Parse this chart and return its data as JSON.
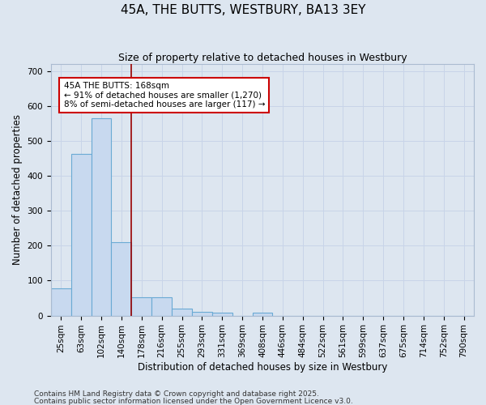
{
  "title": "45A, THE BUTTS, WESTBURY, BA13 3EY",
  "subtitle": "Size of property relative to detached houses in Westbury",
  "xlabel": "Distribution of detached houses by size in Westbury",
  "ylabel": "Number of detached properties",
  "categories": [
    "25sqm",
    "63sqm",
    "102sqm",
    "140sqm",
    "178sqm",
    "216sqm",
    "255sqm",
    "293sqm",
    "331sqm",
    "369sqm",
    "408sqm",
    "446sqm",
    "484sqm",
    "522sqm",
    "561sqm",
    "599sqm",
    "637sqm",
    "675sqm",
    "714sqm",
    "752sqm",
    "790sqm"
  ],
  "values": [
    78,
    462,
    565,
    210,
    52,
    52,
    20,
    10,
    8,
    0,
    8,
    0,
    0,
    0,
    0,
    0,
    0,
    0,
    0,
    0,
    0
  ],
  "bar_color": "#c8d9ef",
  "bar_edge_color": "#6aaad4",
  "red_line_x": 3.5,
  "annotation_text": "45A THE BUTTS: 168sqm\n← 91% of detached houses are smaller (1,270)\n8% of semi-detached houses are larger (117) →",
  "annotation_box_color": "#ffffff",
  "annotation_box_edge": "#cc0000",
  "red_line_color": "#990000",
  "grid_color": "#c8d4e8",
  "bg_color": "#dde6f0",
  "ylim": [
    0,
    720
  ],
  "yticks": [
    0,
    100,
    200,
    300,
    400,
    500,
    600,
    700
  ],
  "footnote1": "Contains HM Land Registry data © Crown copyright and database right 2025.",
  "footnote2": "Contains public sector information licensed under the Open Government Licence v3.0.",
  "title_fontsize": 11,
  "subtitle_fontsize": 9,
  "axis_label_fontsize": 8.5,
  "tick_fontsize": 7.5,
  "annot_fontsize": 7.5
}
